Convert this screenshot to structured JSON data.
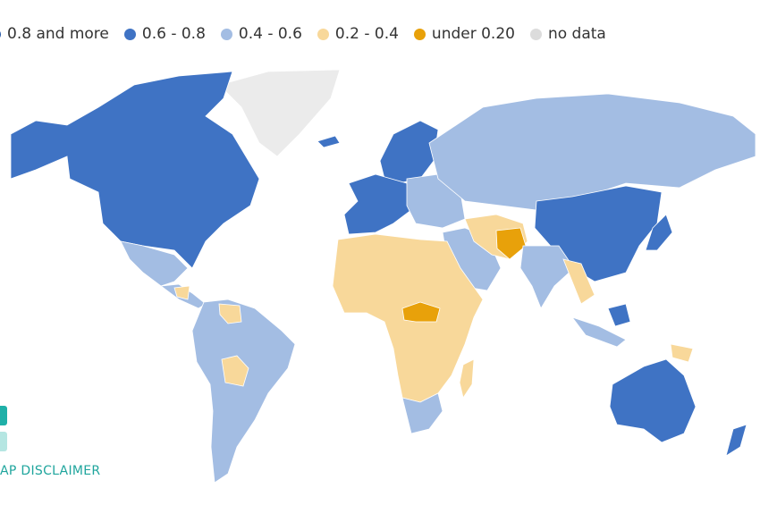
{
  "legend": {
    "items": [
      {
        "label": "0.8 and more",
        "color": "#2456a6"
      },
      {
        "label": "0.6 - 0.8",
        "color": "#3f73c4"
      },
      {
        "label": "0.4 - 0.6",
        "color": "#a3bde3"
      },
      {
        "label": "0.2 - 0.4",
        "color": "#f8d89a"
      },
      {
        "label": "under 0.20",
        "color": "#e8a10a"
      },
      {
        "label": "no data",
        "color": "#dcdcdc"
      }
    ]
  },
  "disclaimer": "AP DISCLAIMER"
}
